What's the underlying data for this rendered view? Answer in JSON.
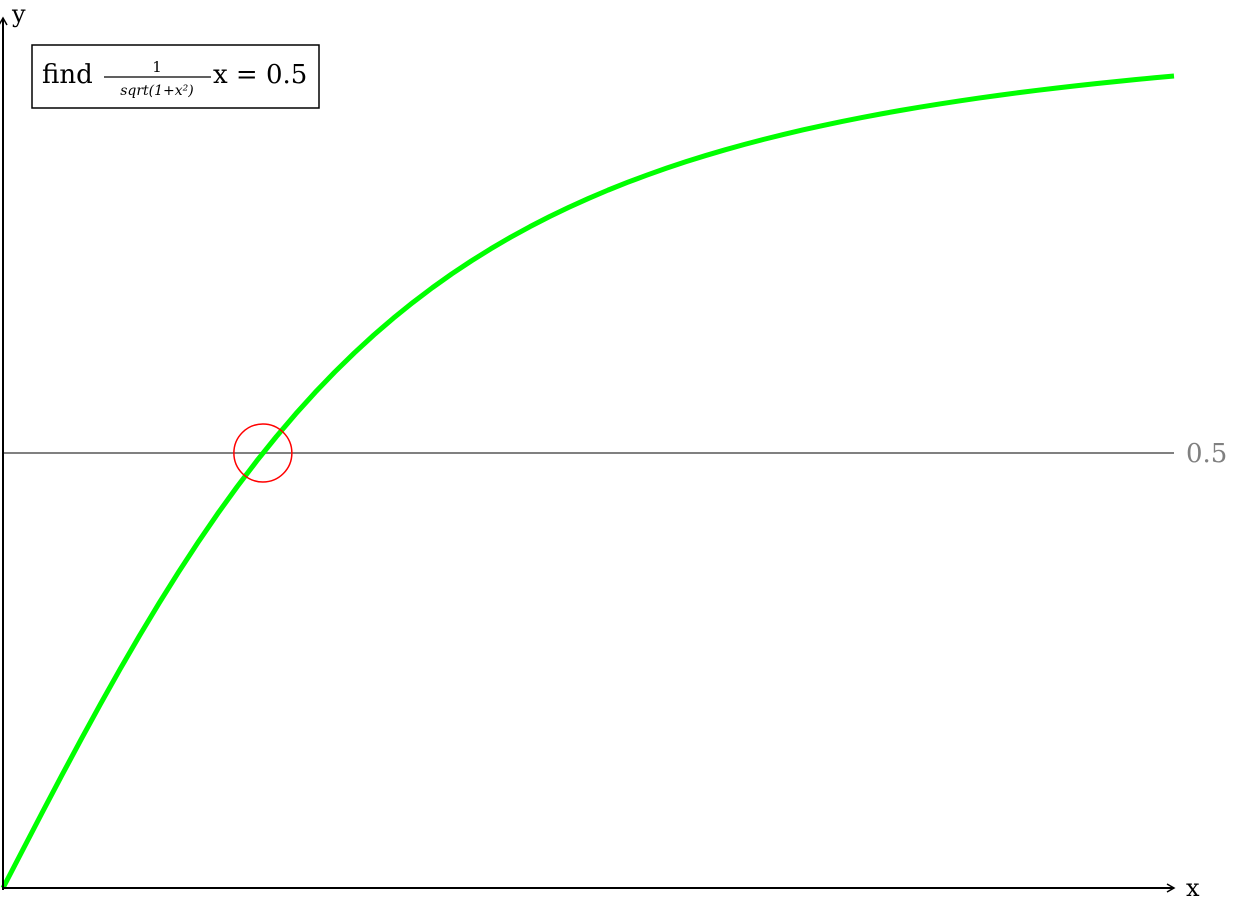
{
  "chart_data": {
    "type": "line",
    "title_parts": {
      "prefix": "find",
      "numerator": "1",
      "denominator": "sqrt(1+x²)",
      "suffix": "x = 0.5"
    },
    "xlabel": "x",
    "ylabel": "y",
    "function": "x / sqrt(1 + x^2)",
    "xlim": [
      0,
      2.6
    ],
    "ylim": [
      0,
      1.0
    ],
    "series": [
      {
        "color": "#00ff00",
        "samples": 60
      }
    ],
    "reference_line": {
      "y": 0.5,
      "label": "0.5",
      "color": "#808080"
    },
    "highlight": {
      "x": 0.577,
      "y": 0.5,
      "color": "#ff0000"
    },
    "grid": false
  }
}
